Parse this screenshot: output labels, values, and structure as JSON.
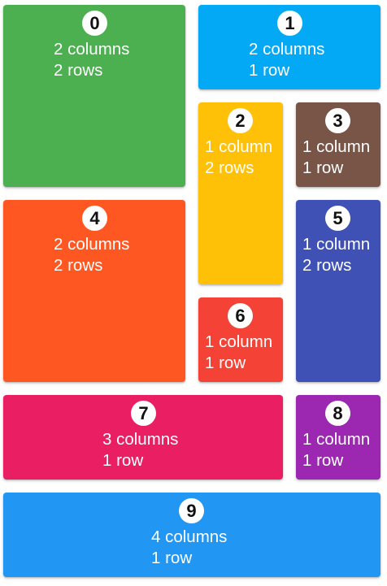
{
  "tiles": [
    {
      "index": "0",
      "columns_text": "2 columns",
      "rows_text": "2 rows",
      "color": "#4CAF50"
    },
    {
      "index": "1",
      "columns_text": "2 columns",
      "rows_text": "1 row",
      "color": "#03A9F4"
    },
    {
      "index": "2",
      "columns_text": "1 column",
      "rows_text": "2 rows",
      "color": "#FFC107"
    },
    {
      "index": "3",
      "columns_text": "1 column",
      "rows_text": "1 row",
      "color": "#795548"
    },
    {
      "index": "4",
      "columns_text": "2 columns",
      "rows_text": "2 rows",
      "color": "#FF5722"
    },
    {
      "index": "5",
      "columns_text": "1 column",
      "rows_text": "2 rows",
      "color": "#3F51B5"
    },
    {
      "index": "6",
      "columns_text": "1 column",
      "rows_text": "1 row",
      "color": "#F44336"
    },
    {
      "index": "7",
      "columns_text": "3 columns",
      "rows_text": "1 row",
      "color": "#E91E63"
    },
    {
      "index": "8",
      "columns_text": "1 column",
      "rows_text": "1 row",
      "color": "#9C27B0"
    },
    {
      "index": "9",
      "columns_text": "4 columns",
      "rows_text": "1 row",
      "color": "#2196F3"
    }
  ]
}
